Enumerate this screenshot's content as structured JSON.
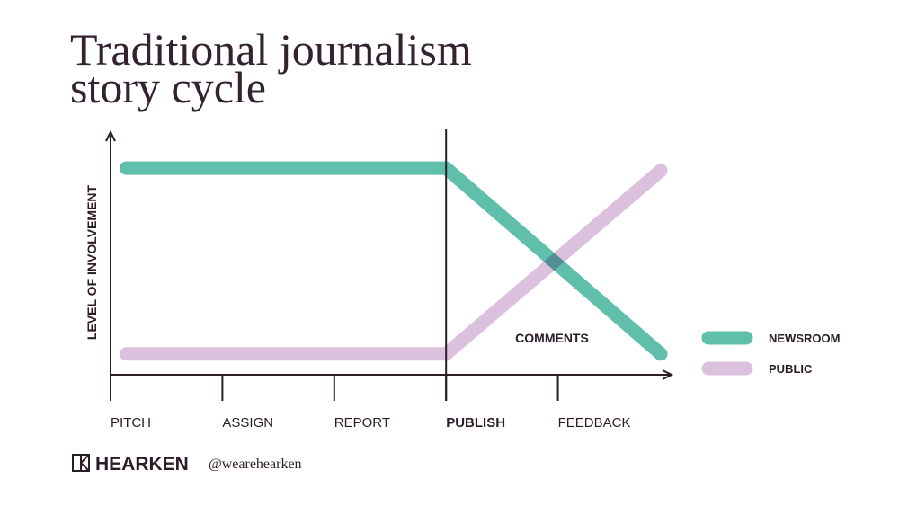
{
  "chart_data": {
    "type": "line",
    "title": [
      "Traditional journalism",
      "story cycle"
    ],
    "y_label": "LEVEL OF INVOLVEMENT",
    "xlim": [
      0,
      5
    ],
    "ylim": [
      0,
      100
    ],
    "xticks": [
      {
        "value": 0,
        "label": "PITCH"
      },
      {
        "value": 1,
        "label": "ASSIGN"
      },
      {
        "value": 2,
        "label": "REPORT"
      },
      {
        "value": 3,
        "label": "PUBLISH"
      },
      {
        "value": 4,
        "label": "FEEDBACK"
      }
    ],
    "vline": 3,
    "series": [
      {
        "name": "NEWSROOM",
        "color": "#5fbfab",
        "x": [
          0.14,
          3,
          4.92
        ],
        "values": [
          86,
          86,
          8
        ]
      },
      {
        "name": "PUBLIC",
        "color": "#dcc1df",
        "x": [
          0.14,
          3,
          4.92
        ],
        "values": [
          8,
          8,
          85
        ]
      }
    ],
    "annotation": "COMMENTS"
  },
  "footer": {
    "brand": "HEARKEN",
    "handle": "@wearehearken"
  }
}
